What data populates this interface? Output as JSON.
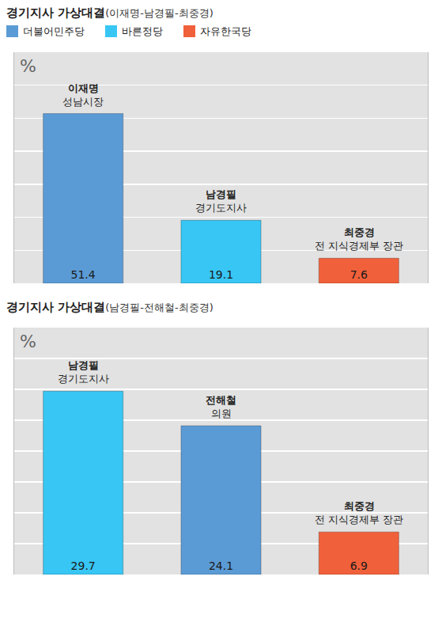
{
  "legend_items": [
    {
      "name": "더불어민주당",
      "color": "#5b9bd5"
    },
    {
      "name": "바른정당",
      "color": "#38c6f4"
    },
    {
      "name": "자유한국당",
      "color": "#f0603a"
    }
  ],
  "chart_data": [
    {
      "type": "bar",
      "title": "경기지사 가상대결",
      "subtitle": "(이재명-남경필-최중경)",
      "ylabel": "%",
      "categories": [
        "이재명",
        "남경필",
        "최중경"
      ],
      "descriptions": [
        "성남시장",
        "경기도지사",
        "전 지식경제부 장관"
      ],
      "values": [
        51.4,
        19.1,
        7.6
      ],
      "colors": [
        "#5b9bd5",
        "#38c6f4",
        "#f0603a"
      ],
      "ylim": [
        0,
        70
      ],
      "yticks": [
        0,
        10,
        20,
        30,
        40,
        50,
        60,
        70
      ],
      "grid": true,
      "tick_labels": false,
      "data_labels": true,
      "legend": "top left"
    },
    {
      "type": "bar",
      "title": "경기지사 가상대결",
      "subtitle": "(남경필-전해철-최중경)",
      "ylabel": "%",
      "categories": [
        "남경필",
        "전해철",
        "최중경"
      ],
      "descriptions": [
        "경기도지사",
        "의원",
        "전 지식경제부 장관"
      ],
      "values": [
        29.7,
        24.1,
        6.9
      ],
      "colors": [
        "#38c6f4",
        "#5b9bd5",
        "#f0603a"
      ],
      "ylim": [
        0,
        40
      ],
      "yticks": [
        0,
        5,
        10,
        15,
        20,
        25,
        30,
        35,
        40
      ],
      "grid": true,
      "tick_labels": false,
      "data_labels": true
    }
  ]
}
